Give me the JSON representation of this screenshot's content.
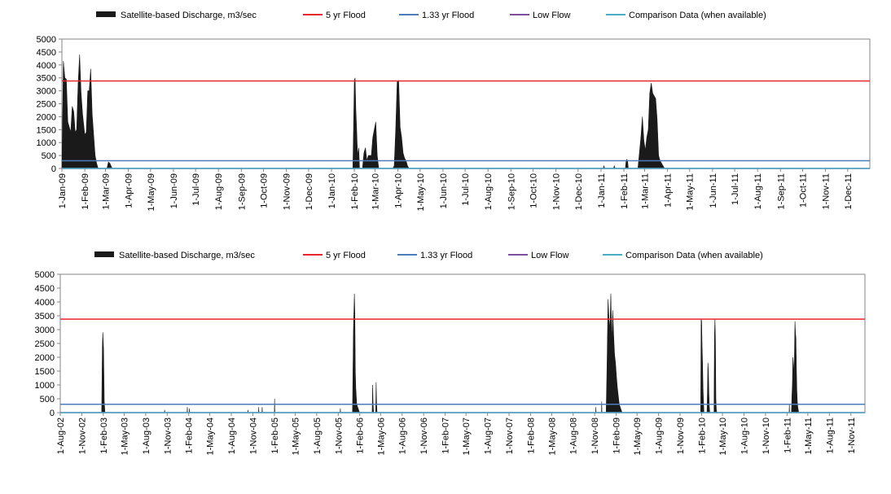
{
  "legend": {
    "discharge": "Satellite-based Discharge, m3/sec",
    "flood5": "5 yr Flood",
    "flood133": "1.33 yr Flood",
    "lowflow": "Low Flow",
    "comparison": "Comparison Data (when available)"
  },
  "colors": {
    "discharge": "#1a1a1a",
    "flood5": "#e8272d",
    "flood133": "#4a7ebb",
    "lowflow": "#7f4f9f",
    "comparison": "#4bacc6",
    "axis": "#868686"
  },
  "chart_data": [
    {
      "type": "area",
      "series": [
        {
          "name": "Satellite-based Discharge, m3/sec",
          "kind": "area",
          "x": [
            "2009-01-01",
            "2009-01-03",
            "2009-01-05",
            "2009-01-07",
            "2009-01-09",
            "2009-01-11",
            "2009-01-13",
            "2009-01-15",
            "2009-01-17",
            "2009-01-19",
            "2009-01-21",
            "2009-01-23",
            "2009-01-25",
            "2009-01-27",
            "2009-01-29",
            "2009-02-01",
            "2009-02-03",
            "2009-02-05",
            "2009-02-07",
            "2009-02-09",
            "2009-02-11",
            "2009-02-13",
            "2009-02-15",
            "2009-02-17",
            "2009-02-19",
            "2009-02-21",
            "2009-02-24",
            "2009-02-27",
            "2009-03-01",
            "2009-03-03",
            "2009-03-05",
            "2009-03-07",
            "2009-03-10",
            "2010-01-30",
            "2010-02-01",
            "2010-02-02",
            "2010-02-03",
            "2010-02-04",
            "2010-02-05",
            "2010-02-06",
            "2010-02-07",
            "2010-02-08",
            "2010-02-12",
            "2010-02-14",
            "2010-02-16",
            "2010-02-18",
            "2010-02-20",
            "2010-02-22",
            "2010-02-24",
            "2010-02-26",
            "2010-02-28",
            "2010-03-02",
            "2010-03-04",
            "2010-03-06",
            "2010-03-08",
            "2010-03-10",
            "2010-03-12",
            "2010-03-15",
            "2010-03-25",
            "2010-03-27",
            "2010-03-29",
            "2010-03-31",
            "2010-04-02",
            "2010-04-04",
            "2010-04-06",
            "2010-04-08",
            "2010-04-10",
            "2010-04-12",
            "2010-04-14",
            "2010-04-16",
            "2010-04-18",
            "2010-04-20",
            "2011-01-04",
            "2011-01-05",
            "2011-01-06",
            "2011-01-18",
            "2011-01-19",
            "2011-01-20",
            "2011-02-03",
            "2011-02-04",
            "2011-02-05",
            "2011-02-06",
            "2011-02-07",
            "2011-02-20",
            "2011-02-22",
            "2011-02-24",
            "2011-02-26",
            "2011-02-28",
            "2011-03-02",
            "2011-03-04",
            "2011-03-06",
            "2011-03-08",
            "2011-03-10",
            "2011-03-12",
            "2011-03-14",
            "2011-03-16",
            "2011-03-18",
            "2011-03-20",
            "2011-03-22",
            "2011-03-24",
            "2011-03-26",
            "2011-03-28"
          ],
          "values": [
            0,
            4150,
            3500,
            3450,
            1800,
            1600,
            1400,
            2400,
            2200,
            1400,
            1500,
            3300,
            4400,
            2900,
            2100,
            1300,
            1400,
            3000,
            3000,
            3850,
            2100,
            1300,
            500,
            200,
            0,
            0,
            0,
            0,
            0,
            0,
            250,
            200,
            0,
            0,
            3400,
            3500,
            2300,
            1600,
            800,
            500,
            800,
            0,
            0,
            600,
            800,
            300,
            500,
            500,
            500,
            1200,
            1500,
            1800,
            500,
            0,
            0,
            0,
            0,
            0,
            0,
            100,
            1500,
            3350,
            3400,
            1600,
            1200,
            600,
            400,
            300,
            100,
            0,
            0,
            0,
            0,
            100,
            0,
            0,
            100,
            0,
            0,
            300,
            350,
            300,
            0,
            0,
            600,
            1200,
            2000,
            1100,
            700,
            1200,
            1500,
            2900,
            3300,
            2900,
            2800,
            2700,
            1900,
            500,
            300,
            200,
            100,
            0
          ]
        },
        {
          "name": "5 yr Flood",
          "kind": "line",
          "values": [
            3380
          ]
        },
        {
          "name": "1.33 yr Flood",
          "kind": "line",
          "values": [
            300
          ]
        },
        {
          "name": "Low Flow",
          "kind": "line",
          "values": [
            0
          ]
        },
        {
          "name": "Comparison Data (when available)",
          "kind": "line",
          "values": [
            0
          ]
        }
      ],
      "x_ticks": [
        "1-Jan-09",
        "1-Feb-09",
        "1-Mar-09",
        "1-Apr-09",
        "1-May-09",
        "1-Jun-09",
        "1-Jul-09",
        "1-Aug-09",
        "1-Sep-09",
        "1-Oct-09",
        "1-Nov-09",
        "1-Dec-09",
        "1-Jan-10",
        "1-Feb-10",
        "1-Mar-10",
        "1-Apr-10",
        "1-May-10",
        "1-Jun-10",
        "1-Jul-10",
        "1-Aug-10",
        "1-Sep-10",
        "1-Oct-10",
        "1-Nov-10",
        "1-Dec-10",
        "1-Jan-11",
        "1-Feb-11",
        "1-Mar-11",
        "1-Apr-11",
        "1-May-11",
        "1-Jun-11",
        "1-Jul-11",
        "1-Aug-11",
        "1-Sep-11",
        "1-Oct-11",
        "1-Nov-11",
        "1-Dec-11"
      ],
      "xlim": [
        "2009-01-01",
        "2011-12-31"
      ],
      "y_ticks": [
        "5000",
        "4500",
        "4000",
        "3500",
        "3000",
        "2500",
        "2000",
        "1500",
        "1000",
        "500",
        "0"
      ],
      "ylim": [
        0,
        5000
      ],
      "grid": false,
      "legend_position": "top"
    },
    {
      "type": "area",
      "series": [
        {
          "name": "Satellite-based Discharge, m3/sec",
          "kind": "area",
          "x": [
            "2003-01-25",
            "2003-01-28",
            "2003-01-30",
            "2003-02-02",
            "2003-02-05",
            "2003-02-08",
            "2003-10-20",
            "2003-10-21",
            "2003-10-22",
            "2004-01-25",
            "2004-01-26",
            "2004-01-27",
            "2004-02-03",
            "2004-02-04",
            "2004-02-05",
            "2004-10-10",
            "2004-10-11",
            "2004-10-12",
            "2004-11-25",
            "2004-11-26",
            "2004-11-27",
            "2004-12-10",
            "2004-12-11",
            "2004-12-12",
            "2005-02-01",
            "2005-02-02",
            "2005-02-03",
            "2005-11-09",
            "2005-11-10",
            "2005-11-11",
            "2006-01-01",
            "2006-01-05",
            "2006-01-09",
            "2006-01-11",
            "2006-01-13",
            "2006-01-15",
            "2006-01-17",
            "2006-01-19",
            "2006-01-23",
            "2006-01-27",
            "2006-01-31",
            "2006-03-26",
            "2006-03-28",
            "2006-03-30",
            "2006-04-01",
            "2006-04-10",
            "2006-04-12",
            "2006-04-14",
            "2006-04-16",
            "2008-11-05",
            "2008-11-06",
            "2008-11-07",
            "2008-11-30",
            "2008-12-01",
            "2008-12-02",
            "2008-12-20",
            "2008-12-24",
            "2008-12-28",
            "2009-01-01",
            "2009-01-05",
            "2009-01-09",
            "2009-01-13",
            "2009-01-17",
            "2009-01-21",
            "2009-01-25",
            "2009-01-29",
            "2009-02-02",
            "2009-02-06",
            "2009-02-10",
            "2009-02-14",
            "2009-02-18",
            "2009-02-22",
            "2009-02-26",
            "2009-03-02",
            "2009-03-06",
            "2009-03-10",
            "2010-01-28",
            "2010-01-30",
            "2010-02-01",
            "2010-02-03",
            "2010-02-05",
            "2010-02-07",
            "2010-02-09",
            "2010-02-11",
            "2010-02-24",
            "2010-02-26",
            "2010-02-28",
            "2010-03-02",
            "2010-03-04",
            "2010-03-06",
            "2010-03-08",
            "2010-03-26",
            "2010-03-28",
            "2010-03-30",
            "2010-04-01",
            "2010-04-03",
            "2010-04-05",
            "2010-04-07",
            "2011-02-10",
            "2011-02-11",
            "2011-02-12",
            "2011-02-20",
            "2011-02-22",
            "2011-02-24",
            "2011-02-26",
            "2011-03-01",
            "2011-03-03",
            "2011-03-05",
            "2011-03-07",
            "2011-03-09",
            "2011-03-11",
            "2011-03-13",
            "2011-03-15",
            "2011-03-17",
            "2011-03-19",
            "2011-03-21",
            "2011-03-23",
            "2011-03-25",
            "2011-03-27",
            "2011-03-29"
          ],
          "values": [
            0,
            2400,
            2900,
            2300,
            400,
            0,
            0,
            100,
            0,
            0,
            200,
            0,
            0,
            150,
            0,
            0,
            100,
            0,
            0,
            200,
            0,
            0,
            200,
            0,
            0,
            500,
            0,
            0,
            150,
            0,
            0,
            3000,
            4300,
            3600,
            1500,
            900,
            600,
            300,
            200,
            100,
            0,
            0,
            1000,
            300,
            0,
            0,
            1100,
            300,
            0,
            0,
            200,
            0,
            0,
            400,
            0,
            0,
            1800,
            4100,
            3400,
            3000,
            4300,
            2500,
            3700,
            2800,
            2100,
            1800,
            1300,
            900,
            600,
            300,
            200,
            100,
            0,
            0,
            0,
            0,
            0,
            3400,
            3300,
            2400,
            1800,
            900,
            400,
            0,
            0,
            800,
            1800,
            1500,
            700,
            200,
            0,
            0,
            2800,
            3400,
            2600,
            500,
            100,
            0,
            0,
            300,
            0,
            0,
            600,
            1000,
            2000,
            1700,
            1200,
            2200,
            3300,
            2900,
            2700,
            1600,
            800,
            400,
            200,
            100,
            0,
            0,
            0,
            0
          ]
        },
        {
          "name": "5 yr Flood",
          "kind": "line",
          "values": [
            3380
          ]
        },
        {
          "name": "1.33 yr Flood",
          "kind": "line",
          "values": [
            300
          ]
        },
        {
          "name": "Low Flow",
          "kind": "line",
          "values": [
            0
          ]
        },
        {
          "name": "Comparison Data (when available)",
          "kind": "line",
          "values": [
            0
          ]
        }
      ],
      "x_ticks": [
        "1-Aug-02",
        "1-Nov-02",
        "1-Feb-03",
        "1-May-03",
        "1-Aug-03",
        "1-Nov-03",
        "1-Feb-04",
        "1-May-04",
        "1-Aug-04",
        "1-Nov-04",
        "1-Feb-05",
        "1-May-05",
        "1-Aug-05",
        "1-Nov-05",
        "1-Feb-06",
        "1-May-06",
        "1-Aug-06",
        "1-Nov-06",
        "1-Feb-07",
        "1-May-07",
        "1-Aug-07",
        "1-Nov-07",
        "1-Feb-08",
        "1-May-08",
        "1-Aug-08",
        "1-Nov-08",
        "1-Feb-09",
        "1-May-09",
        "1-Aug-09",
        "1-Nov-09",
        "1-Feb-10",
        "1-May-10",
        "1-Aug-10",
        "1-Nov-10",
        "1-Feb-11",
        "1-May-11",
        "1-Aug-11",
        "1-Nov-11"
      ],
      "xlim": [
        "2002-08-01",
        "2011-12-31"
      ],
      "y_ticks": [
        "5000",
        "4500",
        "4000",
        "3500",
        "3000",
        "2500",
        "2000",
        "1500",
        "1000",
        "500",
        "0"
      ],
      "ylim": [
        0,
        5000
      ],
      "grid": false,
      "legend_position": "top"
    }
  ]
}
